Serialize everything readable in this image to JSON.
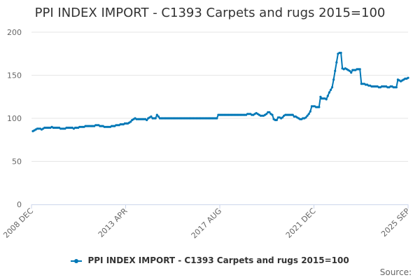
{
  "chart_data": {
    "type": "line",
    "title": "PPI INDEX IMPORT - C1393 Carpets and rugs 2015=100",
    "ylim": [
      0,
      200
    ],
    "yticks": [
      0,
      50,
      100,
      150,
      200
    ],
    "xticks": [
      "2008 DEC",
      "2013 APR",
      "2017 AUG",
      "2021 DEC",
      "2025 SEP"
    ],
    "grid": "horizontal",
    "legend_position": "bottom",
    "source_label": "Source:",
    "line_color": "#0077b6",
    "series": [
      {
        "name": "PPI INDEX IMPORT - C1393 Carpets and rugs 2015=100",
        "values": [
          85,
          86,
          87,
          88,
          88,
          88,
          87,
          88,
          89,
          89,
          89,
          89,
          89,
          90,
          89,
          89,
          89,
          89,
          89,
          88,
          88,
          88,
          88,
          89,
          89,
          89,
          89,
          89,
          88,
          89,
          89,
          89,
          90,
          90,
          90,
          90,
          91,
          91,
          91,
          91,
          91,
          91,
          91,
          92,
          92,
          92,
          91,
          91,
          91,
          90,
          90,
          90,
          90,
          90,
          91,
          91,
          91,
          92,
          92,
          92,
          93,
          93,
          93,
          94,
          94,
          94,
          95,
          96,
          98,
          99,
          100,
          99,
          99,
          99,
          99,
          99,
          99,
          99,
          98,
          100,
          101,
          102,
          100,
          100,
          100,
          104,
          102,
          100,
          100,
          100,
          100,
          100,
          100,
          100,
          100,
          100,
          100,
          100,
          100,
          100,
          100,
          100,
          100,
          100,
          100,
          100,
          100,
          100,
          100,
          100,
          100,
          100,
          100,
          100,
          100,
          100,
          100,
          100,
          100,
          100,
          100,
          100,
          100,
          100,
          100,
          100,
          100,
          104,
          104,
          104,
          104,
          104,
          104,
          104,
          104,
          104,
          104,
          104,
          104,
          104,
          104,
          104,
          104,
          104,
          104,
          104,
          104,
          105,
          105,
          105,
          104,
          104,
          105,
          106,
          105,
          104,
          103,
          103,
          103,
          104,
          105,
          107,
          107,
          105,
          104,
          99,
          98,
          98,
          101,
          101,
          100,
          101,
          103,
          104,
          104,
          104,
          104,
          104,
          104,
          102,
          102,
          101,
          100,
          99,
          99,
          100,
          100,
          101,
          103,
          105,
          108,
          114,
          114,
          114,
          113,
          113,
          113,
          125,
          123,
          123,
          123,
          122,
          126,
          130,
          133,
          136,
          145,
          155,
          165,
          175,
          176,
          176,
          158,
          157,
          158,
          157,
          156,
          155,
          153,
          156,
          156,
          156,
          157,
          157,
          157,
          140,
          140,
          140,
          139,
          139,
          138,
          138,
          137,
          137,
          137,
          137,
          137,
          136,
          136,
          137,
          137,
          137,
          137,
          136,
          136,
          137,
          137,
          136,
          136,
          136,
          145,
          144,
          143,
          144,
          145,
          146,
          146,
          147
        ]
      }
    ]
  }
}
